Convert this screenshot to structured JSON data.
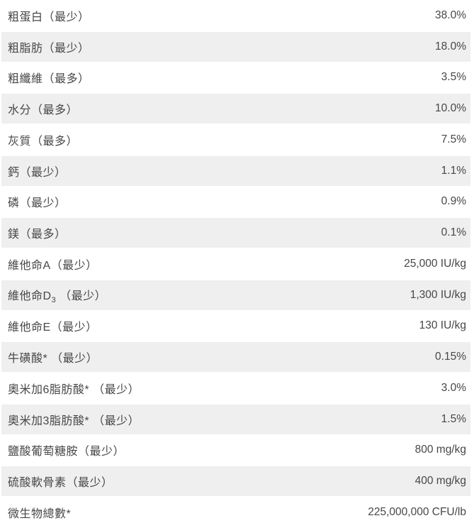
{
  "table": {
    "name": "guaranteed-analysis",
    "colors": {
      "row_alt_bg": "#efefef",
      "text": "#474747",
      "page_bg": "#ffffff"
    },
    "rows": [
      {
        "label": "粗蛋白（最少）",
        "value": "38.0%"
      },
      {
        "label": "粗脂肪（最少）",
        "value": "18.0%"
      },
      {
        "label": "粗纖維（最多）",
        "value": "3.5%"
      },
      {
        "label": "水分（最多）",
        "value": "10.0%"
      },
      {
        "label": "灰質（最多）",
        "value": "7.5%"
      },
      {
        "label": "鈣（最少）",
        "value": "1.1%"
      },
      {
        "label": "磷（最少）",
        "value": "0.9%"
      },
      {
        "label": "鎂（最多）",
        "value": "0.1%"
      },
      {
        "label": "維他命A（最少）",
        "value": "25,000 IU/kg"
      },
      {
        "label_pre": "維他命D",
        "label_sub": "3",
        "label_post": " （最少）",
        "value": "1,300 IU/kg"
      },
      {
        "label": "維他命E（最少）",
        "value": "130 IU/kg"
      },
      {
        "label": "牛磺酸* （最少）",
        "value": "0.15%"
      },
      {
        "label": "奧米加6脂肪酸* （最少）",
        "value": "3.0%"
      },
      {
        "label": "奧米加3脂肪酸* （最少）",
        "value": "1.5%"
      },
      {
        "label": "鹽酸葡萄糖胺（最少）",
        "value": "800 mg/kg"
      },
      {
        "label": "硫酸軟骨素（最少）",
        "value": "400 mg/kg"
      },
      {
        "label": "微生物總數*",
        "value": "225,000,000 CFU/lb"
      }
    ]
  }
}
